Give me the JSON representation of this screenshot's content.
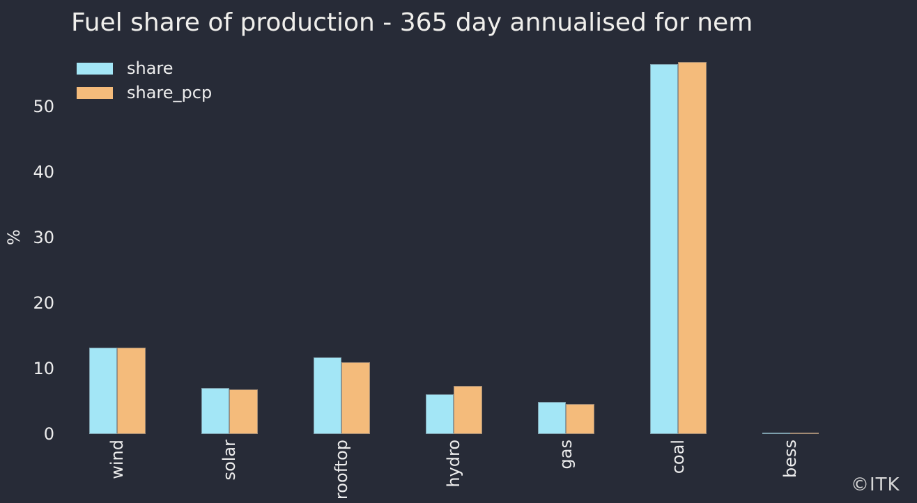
{
  "watermark": "©ITK",
  "colors": {
    "background": "#272b37",
    "text": "#ededed",
    "share": "#a3e6f6",
    "share_pcp": "#f4bb7b"
  },
  "legend": {
    "items": [
      {
        "label": "share",
        "color": "#a3e6f6"
      },
      {
        "label": "share_pcp",
        "color": "#f4bb7b"
      }
    ]
  },
  "chart_data": {
    "type": "bar",
    "title": "Fuel share of production - 365 day annualised for nem",
    "xlabel": "",
    "ylabel": "%",
    "categories": [
      "wind",
      "solar",
      "rooftop",
      "hydro",
      "gas",
      "coal",
      "bess"
    ],
    "series": [
      {
        "name": "share",
        "color": "#a3e6f6",
        "values": [
          13.2,
          7.0,
          11.7,
          6.1,
          4.9,
          56.4,
          0.2
        ]
      },
      {
        "name": "share_pcp",
        "color": "#f4bb7b",
        "values": [
          13.2,
          6.8,
          10.9,
          7.3,
          4.6,
          56.7,
          0.2
        ]
      }
    ],
    "yticks": [
      0,
      10,
      20,
      30,
      40,
      50
    ],
    "ylim": [
      0,
      57
    ],
    "grid": false,
    "legend_position": "upper left",
    "x_tick_rotation": 90,
    "annotations": [
      "©ITK"
    ]
  }
}
